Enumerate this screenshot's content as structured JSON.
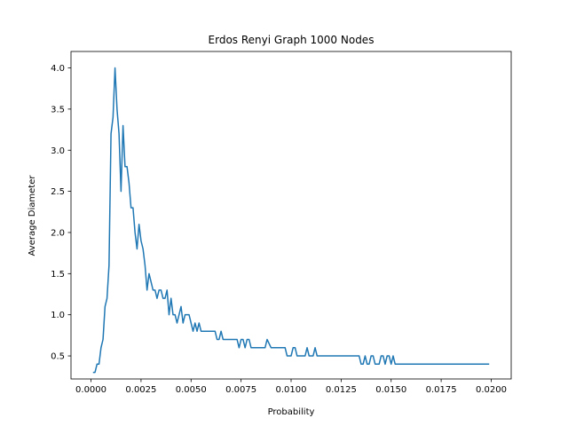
{
  "chart_data": {
    "type": "line",
    "title": "Erdos Renyi Graph 1000 Nodes",
    "xlabel": "Probability",
    "ylabel": "Average Diameter",
    "xlim": [
      -0.001,
      0.021
    ],
    "ylim": [
      0.22,
      4.2
    ],
    "xticks": [
      "0.0000",
      "0.0025",
      "0.0050",
      "0.0075",
      "0.0100",
      "0.0125",
      "0.0150",
      "0.0175",
      "0.0200"
    ],
    "xtick_values": [
      0.0,
      0.0025,
      0.005,
      0.0075,
      0.01,
      0.0125,
      0.015,
      0.0175,
      0.02
    ],
    "yticks": [
      "0.5",
      "1.0",
      "1.5",
      "2.0",
      "2.5",
      "3.0",
      "3.5",
      "4.0"
    ],
    "ytick_values": [
      0.5,
      1.0,
      1.5,
      2.0,
      2.5,
      3.0,
      3.5,
      4.0
    ],
    "grid": false,
    "line_color": "#1f77b4",
    "series": [
      {
        "x": [
          0.0001,
          0.0002,
          0.0003,
          0.0004,
          0.0005,
          0.0006,
          0.0007,
          0.0008,
          0.0009,
          0.001,
          0.0011,
          0.0012,
          0.0013,
          0.0014,
          0.0015,
          0.0016,
          0.0017,
          0.0018,
          0.0019,
          0.002,
          0.0021,
          0.0022,
          0.0023,
          0.0024,
          0.0025,
          0.0026,
          0.0027,
          0.0028,
          0.0029,
          0.003,
          0.0031,
          0.0032,
          0.0033,
          0.0034,
          0.0035,
          0.0036,
          0.0037,
          0.0038,
          0.0039,
          0.004,
          0.0041,
          0.0042,
          0.0043,
          0.0044,
          0.0045,
          0.0046,
          0.0047,
          0.0048,
          0.0049,
          0.005,
          0.0051,
          0.0052,
          0.0053,
          0.0054,
          0.0055,
          0.0056,
          0.0057,
          0.0058,
          0.006,
          0.0062,
          0.0063,
          0.0064,
          0.0065,
          0.0066,
          0.0067,
          0.007,
          0.0073,
          0.0074,
          0.0075,
          0.0076,
          0.0077,
          0.0078,
          0.0079,
          0.008,
          0.0085,
          0.0087,
          0.0088,
          0.009,
          0.0095,
          0.0097,
          0.0098,
          0.01,
          0.0101,
          0.0102,
          0.0103,
          0.0105,
          0.0107,
          0.0108,
          0.0109,
          0.011,
          0.0111,
          0.0112,
          0.0113,
          0.012,
          0.0125,
          0.013,
          0.0134,
          0.0135,
          0.0136,
          0.0137,
          0.0138,
          0.0139,
          0.014,
          0.0141,
          0.0142,
          0.0143,
          0.0144,
          0.0145,
          0.0146,
          0.0147,
          0.0148,
          0.0149,
          0.015,
          0.0151,
          0.0152,
          0.0153,
          0.016,
          0.017,
          0.018,
          0.019,
          0.0199
        ],
        "y": [
          0.3,
          0.3,
          0.4,
          0.4,
          0.6,
          0.7,
          1.1,
          1.2,
          1.6,
          3.2,
          3.4,
          4.0,
          3.5,
          3.2,
          2.5,
          3.3,
          2.8,
          2.8,
          2.6,
          2.3,
          2.3,
          2.0,
          1.8,
          2.1,
          1.9,
          1.8,
          1.6,
          1.3,
          1.5,
          1.4,
          1.3,
          1.3,
          1.2,
          1.3,
          1.3,
          1.2,
          1.2,
          1.3,
          1.0,
          1.2,
          1.0,
          1.0,
          0.9,
          1.0,
          1.1,
          0.9,
          1.0,
          1.0,
          1.0,
          0.9,
          0.8,
          0.9,
          0.8,
          0.9,
          0.8,
          0.8,
          0.8,
          0.8,
          0.8,
          0.8,
          0.7,
          0.7,
          0.8,
          0.7,
          0.7,
          0.7,
          0.7,
          0.6,
          0.7,
          0.7,
          0.6,
          0.7,
          0.7,
          0.6,
          0.6,
          0.6,
          0.7,
          0.6,
          0.6,
          0.6,
          0.5,
          0.5,
          0.6,
          0.6,
          0.5,
          0.5,
          0.5,
          0.6,
          0.5,
          0.5,
          0.5,
          0.6,
          0.5,
          0.5,
          0.5,
          0.5,
          0.5,
          0.4,
          0.4,
          0.5,
          0.4,
          0.4,
          0.5,
          0.5,
          0.4,
          0.4,
          0.4,
          0.5,
          0.5,
          0.4,
          0.5,
          0.5,
          0.4,
          0.5,
          0.4,
          0.4,
          0.4,
          0.4,
          0.4,
          0.4,
          0.4
        ]
      }
    ]
  }
}
